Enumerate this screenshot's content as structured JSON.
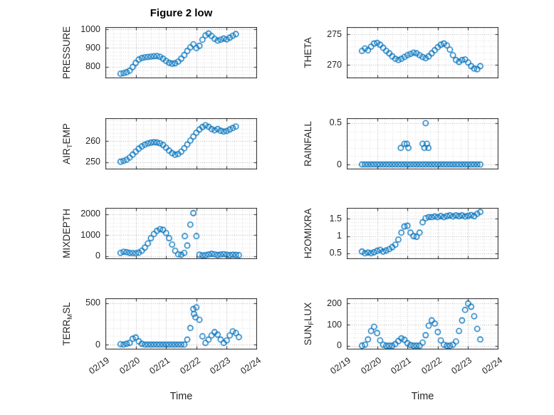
{
  "chart_data": {
    "type": "scatter",
    "title": "Figure 2 low",
    "xlabel": "Time",
    "x_axis": {
      "lim": [
        0,
        5
      ],
      "ticks": [
        0,
        1,
        2,
        3,
        4,
        5
      ],
      "tick_labels": [
        "02/19",
        "02/20",
        "02/21",
        "02/22",
        "02/23",
        "02/24"
      ]
    },
    "style": {
      "marker_color": "#0072BD",
      "axis_color": "#262626",
      "grid_color": "#ababab",
      "minor_grid_color": "#dcdcdc"
    },
    "charts": [
      {
        "name": "PRESSURE",
        "ylabel_parts": [
          {
            "t": "PRESSURE"
          }
        ],
        "ylim": [
          737,
          1013
        ],
        "ytick_values": [
          800,
          900,
          1000
        ],
        "ytick_labels": [
          "800",
          "900",
          "1000"
        ],
        "x_start": 0.5,
        "x_step": 0.1,
        "y": [
          762,
          765,
          770,
          778,
          798,
          820,
          838,
          846,
          850,
          852,
          854,
          856,
          857,
          853,
          843,
          831,
          821,
          816,
          818,
          827,
          843,
          862,
          884,
          904,
          920,
          900,
          912,
          945,
          968,
          978,
          965,
          950,
          940,
          945,
          951,
          947,
          956,
          966,
          975
        ],
        "extra_points": [],
        "show_x_labels": false
      },
      {
        "name": "THETA",
        "ylabel_parts": [
          {
            "t": "THETA"
          }
        ],
        "ylim": [
          267.8,
          276.2
        ],
        "ytick_values": [
          270,
          275
        ],
        "ytick_labels": [
          "270",
          "275"
        ],
        "x_start": 0.5,
        "x_step": 0.1,
        "y": [
          272.3,
          272.7,
          272.4,
          273.0,
          273.5,
          273.6,
          273.3,
          272.8,
          272.3,
          271.9,
          271.4,
          271.0,
          270.8,
          271.0,
          271.3,
          271.6,
          271.8,
          272.0,
          271.9,
          271.6,
          271.3,
          271.1,
          271.4,
          271.9,
          272.4,
          272.9,
          273.3,
          273.5,
          273.2,
          272.5,
          271.6,
          270.8,
          270.5,
          270.8,
          270.9,
          270.4,
          269.8,
          269.4,
          269.3,
          269.8
        ],
        "extra_points": [],
        "show_x_labels": false
      },
      {
        "name": "AIR_TEMP",
        "ylabel_parts": [
          {
            "t": "AIR"
          },
          {
            "t": "T",
            "sub": true
          },
          {
            "t": "EMP"
          }
        ],
        "ylim": [
          246.5,
          271
        ],
        "ytick_values": [
          250,
          260
        ],
        "ytick_labels": [
          "250",
          "260"
        ],
        "x_start": 0.5,
        "x_step": 0.1,
        "y": [
          250.2,
          250.6,
          251.2,
          252.2,
          253.6,
          255.0,
          256.4,
          257.5,
          258.3,
          258.9,
          259.3,
          259.5,
          259.4,
          259.0,
          258.2,
          256.9,
          255.5,
          254.3,
          253.6,
          253.9,
          255.0,
          256.6,
          258.4,
          260.3,
          262.2,
          264.0,
          265.6,
          266.8,
          267.6,
          266.9,
          265.8,
          265.2,
          265.8,
          265.0,
          264.6,
          264.9,
          265.6,
          266.3,
          267.0
        ],
        "extra_points": [],
        "show_x_labels": false
      },
      {
        "name": "RAINFALL",
        "ylabel_parts": [
          {
            "t": "RAINFALL"
          }
        ],
        "ylim": [
          -0.06,
          0.56
        ],
        "ytick_values": [
          0,
          0.5
        ],
        "ytick_labels": [
          "0",
          "0.5"
        ],
        "x_start": 0.5,
        "x_step": 0.1,
        "y": [
          0,
          0,
          0,
          0,
          0,
          0,
          0,
          0,
          0,
          0,
          0,
          0,
          0,
          0,
          0,
          0,
          0,
          0,
          0,
          0,
          0,
          0,
          0,
          0,
          0,
          0,
          0,
          0,
          0,
          0,
          0,
          0,
          0,
          0,
          0,
          0,
          0,
          0,
          0,
          0
        ],
        "extra_points": [
          [
            1.78,
            0.2
          ],
          [
            1.9,
            0.25
          ],
          [
            1.98,
            0.25
          ],
          [
            2.03,
            0.2
          ],
          [
            2.5,
            0.25
          ],
          [
            2.56,
            0.2
          ],
          [
            2.6,
            0.5
          ],
          [
            2.64,
            0.25
          ],
          [
            2.69,
            0.2
          ]
        ],
        "show_x_labels": false
      },
      {
        "name": "MIXDEPTH",
        "ylabel_parts": [
          {
            "t": "MIXDEPTH"
          }
        ],
        "ylim": [
          -150,
          2300
        ],
        "ytick_values": [
          0,
          1000,
          2000
        ],
        "ytick_labels": [
          "0",
          "1000",
          "2000"
        ],
        "x_start": 0.5,
        "x_step": 0.1,
        "y": [
          150,
          200,
          180,
          150,
          140,
          130,
          160,
          250,
          400,
          600,
          850,
          1050,
          1200,
          1280,
          1250,
          1100,
          850,
          550,
          250,
          80,
          60,
          150,
          500,
          1500,
          2050,
          950,
          60,
          30,
          40,
          70,
          100,
          80,
          50,
          70,
          90,
          60,
          40,
          60,
          50,
          40
        ],
        "extra_points": [
          [
            2.62,
            950
          ]
        ],
        "show_x_labels": false
      },
      {
        "name": "H2OMIXRA",
        "ylabel_parts": [
          {
            "t": "H2OMIXRA"
          }
        ],
        "ylim": [
          0.33,
          1.82
        ],
        "ytick_values": [
          0.5,
          1,
          1.5
        ],
        "ytick_labels": [
          "0.5",
          "1",
          "1.5"
        ],
        "x_start": 0.5,
        "x_step": 0.1,
        "y": [
          0.55,
          0.5,
          0.52,
          0.5,
          0.53,
          0.57,
          0.6,
          0.55,
          0.58,
          0.62,
          0.68,
          0.75,
          0.9,
          1.1,
          1.28,
          1.3,
          1.1,
          1.0,
          0.98,
          1.1,
          1.4,
          1.52,
          1.55,
          1.55,
          1.57,
          1.55,
          1.58,
          1.55,
          1.58,
          1.6,
          1.57,
          1.6,
          1.58,
          1.6,
          1.57,
          1.59,
          1.61,
          1.58,
          1.65,
          1.7
        ],
        "extra_points": [],
        "show_x_labels": false
      },
      {
        "name": "TERR_MSL",
        "ylabel_parts": [
          {
            "t": "TERR"
          },
          {
            "t": "M",
            "sub": true
          },
          {
            "t": "SL"
          }
        ],
        "ylim": [
          -60,
          560
        ],
        "ytick_values": [
          0,
          500
        ],
        "ytick_labels": [
          "0",
          "500"
        ],
        "x_start": 0.5,
        "x_step": 0.1,
        "y": [
          5,
          0,
          10,
          20,
          70,
          85,
          40,
          10,
          0,
          0,
          0,
          0,
          0,
          0,
          0,
          0,
          0,
          0,
          0,
          0,
          0,
          0,
          60,
          200,
          430,
          450,
          300,
          100,
          20,
          60,
          110,
          150,
          120,
          60,
          20,
          50,
          110,
          160,
          140,
          90
        ],
        "extra_points": [
          [
            2.92,
            370
          ],
          [
            2.97,
            330
          ]
        ],
        "show_x_labels": true
      },
      {
        "name": "SUN_FLUX",
        "ylabel_parts": [
          {
            "t": "SUN"
          },
          {
            "t": "F",
            "sub": true
          },
          {
            "t": "LUX"
          }
        ],
        "ylim": [
          -18,
          225
        ],
        "ytick_values": [
          0,
          100,
          200
        ],
        "ytick_labels": [
          "0",
          "100",
          "200"
        ],
        "x_start": 0.5,
        "x_step": 0.1,
        "y": [
          0,
          5,
          30,
          70,
          90,
          60,
          25,
          5,
          0,
          0,
          0,
          8,
          22,
          35,
          28,
          12,
          3,
          0,
          0,
          0,
          15,
          50,
          95,
          120,
          105,
          65,
          25,
          5,
          0,
          0,
          5,
          20,
          70,
          120,
          170,
          200,
          185,
          140,
          80,
          30
        ],
        "extra_points": [],
        "show_x_labels": true
      }
    ]
  }
}
